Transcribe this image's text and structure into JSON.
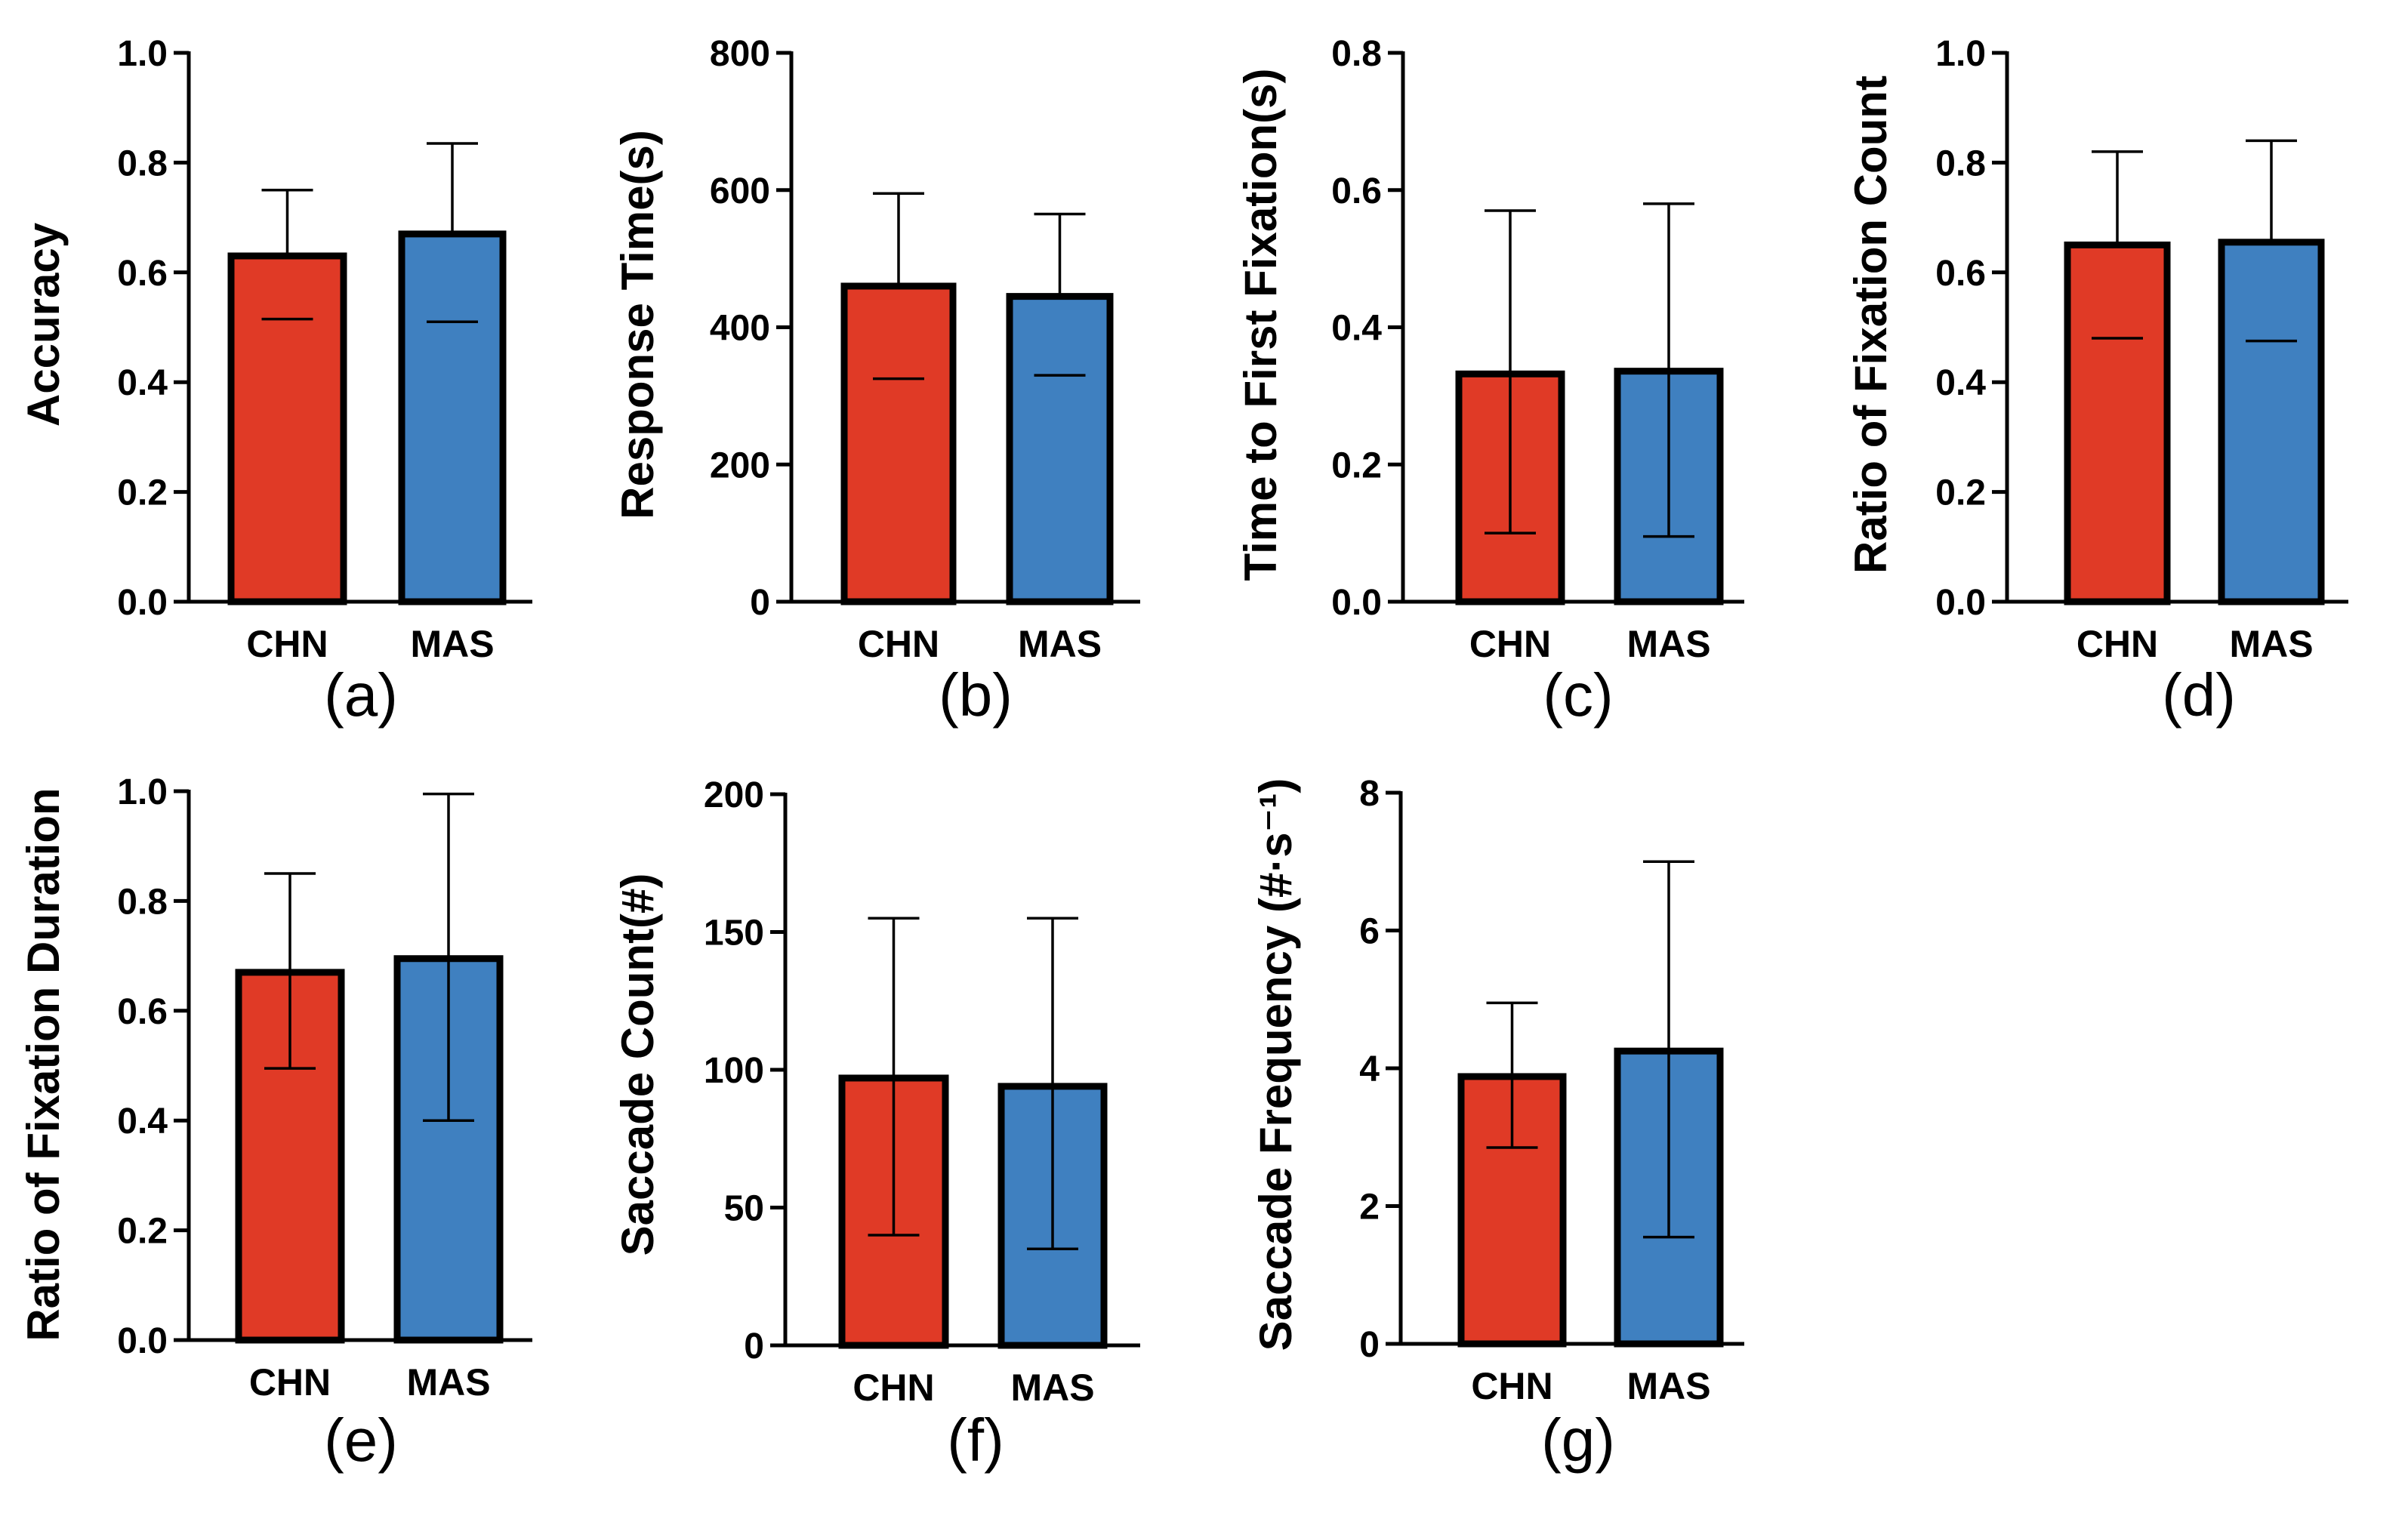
{
  "colors": {
    "CHN": "#e03a26",
    "MAS": "#3f80c0",
    "outline": "#000000",
    "background": "#ffffff"
  },
  "chart_data": [
    {
      "panel": "(a)",
      "type": "bar",
      "categories": [
        "CHN",
        "MAS"
      ],
      "values": [
        0.63,
        0.67
      ],
      "error_upper": [
        0.75,
        0.835
      ],
      "error_lower": [
        0.515,
        0.51
      ],
      "ylabel": "Accuracy",
      "xlabel": "",
      "ylim": [
        0,
        1.0
      ],
      "yticks": [
        0.0,
        0.2,
        0.4,
        0.6,
        0.8,
        1.0
      ],
      "ytick_labels": [
        "0.0",
        "0.2",
        "0.4",
        "0.6",
        "0.8",
        "1.0"
      ],
      "error_bars": "upper"
    },
    {
      "panel": "(b)",
      "type": "bar",
      "categories": [
        "CHN",
        "MAS"
      ],
      "values": [
        460,
        445
      ],
      "error_upper": [
        595,
        565
      ],
      "error_lower": [
        325,
        330
      ],
      "ylabel": "Response Time(s)",
      "xlabel": "",
      "ylim": [
        0,
        800
      ],
      "yticks": [
        0,
        200,
        400,
        600,
        800
      ],
      "ytick_labels": [
        "0",
        "200",
        "400",
        "600",
        "800"
      ],
      "error_bars": "upper"
    },
    {
      "panel": "(c)",
      "type": "bar",
      "categories": [
        "CHN",
        "MAS"
      ],
      "values": [
        0.332,
        0.336
      ],
      "error_upper": [
        0.57,
        0.58
      ],
      "error_lower": [
        0.1,
        0.095
      ],
      "ylabel": "Time to First Fixation(s)",
      "xlabel": "",
      "ylim": [
        0,
        0.8
      ],
      "yticks": [
        0.0,
        0.2,
        0.4,
        0.6,
        0.8
      ],
      "ytick_labels": [
        "0.0",
        "0.2",
        "0.4",
        "0.6",
        "0.8"
      ],
      "error_bars": "both"
    },
    {
      "panel": "(d)",
      "type": "bar",
      "categories": [
        "CHN",
        "MAS"
      ],
      "values": [
        0.65,
        0.655
      ],
      "error_upper": [
        0.82,
        0.84
      ],
      "error_lower": [
        0.48,
        0.475
      ],
      "ylabel": "Ratio of Fixation Count",
      "xlabel": "",
      "ylim": [
        0,
        1.0
      ],
      "yticks": [
        0.0,
        0.2,
        0.4,
        0.6,
        0.8,
        1.0
      ],
      "ytick_labels": [
        "0.0",
        "0.2",
        "0.4",
        "0.6",
        "0.8",
        "1.0"
      ],
      "error_bars": "upper"
    },
    {
      "panel": "(e)",
      "type": "bar",
      "categories": [
        "CHN",
        "MAS"
      ],
      "values": [
        0.67,
        0.695
      ],
      "error_upper": [
        0.85,
        0.995
      ],
      "error_lower": [
        0.495,
        0.4
      ],
      "ylabel": "Ratio of Fixation Duration",
      "xlabel": "",
      "ylim": [
        0,
        1.0
      ],
      "yticks": [
        0.0,
        0.2,
        0.4,
        0.6,
        0.8,
        1.0
      ],
      "ytick_labels": [
        "0.0",
        "0.2",
        "0.4",
        "0.6",
        "0.8",
        "1.0"
      ],
      "error_bars": "both"
    },
    {
      "panel": "(f)",
      "type": "bar",
      "categories": [
        "CHN",
        "MAS"
      ],
      "values": [
        97,
        94
      ],
      "error_upper": [
        155,
        155
      ],
      "error_lower": [
        40,
        35
      ],
      "ylabel": "Saccade Count(#)",
      "xlabel": "",
      "ylim": [
        0,
        200
      ],
      "yticks": [
        0,
        50,
        100,
        150,
        200
      ],
      "ytick_labels": [
        "0",
        "50",
        "100",
        "150",
        "200"
      ],
      "error_bars": "both"
    },
    {
      "panel": "(g)",
      "type": "bar",
      "categories": [
        "CHN",
        "MAS"
      ],
      "values": [
        3.88,
        4.25
      ],
      "error_upper": [
        4.95,
        7.0
      ],
      "error_lower": [
        2.85,
        1.55
      ],
      "ylabel": "Saccade Frequency (#·s⁻¹)",
      "xlabel": "",
      "ylim": [
        0,
        8
      ],
      "yticks": [
        0,
        2,
        4,
        6,
        8
      ],
      "ytick_labels": [
        "0",
        "2",
        "4",
        "6",
        "8"
      ],
      "error_bars": "both"
    }
  ]
}
